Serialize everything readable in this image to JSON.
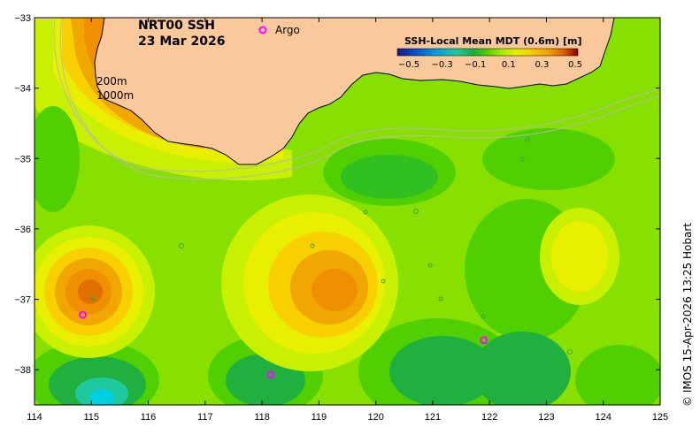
{
  "title": {
    "product": "NRT00 SSH",
    "date": "23 Mar 2026"
  },
  "legend": {
    "argo_symbol": "o",
    "argo_label": "Argo",
    "argo_color": "#ff00ff"
  },
  "contour_labels": {
    "c200": "200m",
    "c1000": "1000m"
  },
  "colorbar": {
    "title": "SSH-Local Mean MDT (0.6m) [m]",
    "ticks": [
      "−0.5",
      "−0.3",
      "−0.1",
      "0.1",
      "0.3",
      "0.5"
    ],
    "colors": [
      "#1a1a8c",
      "#0050d0",
      "#00a0e0",
      "#20d0c0",
      "#10b040",
      "#50d000",
      "#a8ec00",
      "#e8f000",
      "#f8c800",
      "#f0a000",
      "#e07000",
      "#c03000",
      "#8b0000"
    ]
  },
  "axes": {
    "x_ticks": [
      114,
      115,
      116,
      117,
      118,
      119,
      120,
      121,
      122,
      123,
      124,
      125
    ],
    "y_ticks": [
      -33,
      -34,
      -35,
      -36,
      -37,
      -38
    ],
    "x_labels": [
      "114",
      "115",
      "116",
      "117",
      "118",
      "119",
      "120",
      "121",
      "122",
      "123",
      "124",
      "125"
    ],
    "y_labels": [
      "−33",
      "−34",
      "−35",
      "−36",
      "−37",
      "−38"
    ],
    "lon_range": [
      114,
      125
    ],
    "lat_range": [
      -38.5,
      -33
    ]
  },
  "argo_floats": [
    {
      "lon": 114.85,
      "lat": -37.22
    },
    {
      "lon": 118.15,
      "lat": -38.07
    },
    {
      "lon": 121.9,
      "lat": -37.58
    }
  ],
  "colors": {
    "land": "#f9c89b",
    "ocean_base": "#88e000",
    "coast": "#000000",
    "isobath": "#b8b8b8"
  },
  "credit": "© IMOS 15-Apr-2026 13:25 Hobart"
}
